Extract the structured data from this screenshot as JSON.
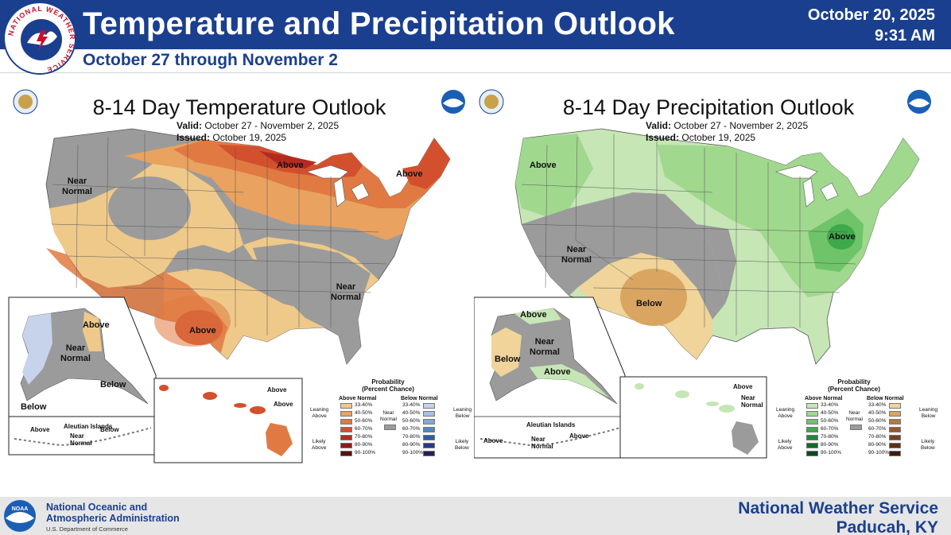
{
  "header": {
    "title": "Temperature and Precipitation Outlook",
    "date": "October 20, 2025",
    "time": "9:31 AM",
    "subtitle": "October 27 through November 2",
    "logo_ring_text": "NATIONAL WEATHER SERVICE",
    "colors": {
      "banner": "#1b3f8f"
    }
  },
  "temperature_map": {
    "title": "8-14 Day Temperature Outlook",
    "valid_label": "Valid:",
    "valid_value": "October 27 - November 2, 2025",
    "issued_label": "Issued:",
    "issued_value": "October 19, 2025",
    "regions": {
      "near_normal_west": "Near\nNormal",
      "above_north": "Above",
      "above_ne": "Above",
      "near_normal_east": "Near\nNormal",
      "above_tx": "Above",
      "ak_above": "Above",
      "ak_near_normal": "Near\nNormal",
      "ak_below_east": "Below",
      "ak_below_west": "Below",
      "aleutian_title": "Aleutian Islands",
      "aleutian_above": "Above",
      "aleutian_below": "Below",
      "aleutian_near": "Near\nNormal",
      "hi_above_1": "Above",
      "hi_above_2": "Above"
    },
    "legend": {
      "title": "Probability\n(Percent Chance)",
      "above_head": "Above Normal",
      "below_head": "Below Normal",
      "near_head": "Near\nNormal",
      "leaning_above": "Leaning\nAbove",
      "likely_above": "Likely\nAbove",
      "leaning_below": "Leaning\nBelow",
      "likely_below": "Likely\nBelow",
      "bins": [
        "33-40%",
        "40-50%",
        "50-60%",
        "60-70%",
        "70-80%",
        "80-90%",
        "90-100%"
      ],
      "above_colors": [
        "#efc98a",
        "#e9a25f",
        "#e07a42",
        "#d3502f",
        "#b52a1f",
        "#8e1a14",
        "#5e0f0b"
      ],
      "below_colors": [
        "#c6d3ea",
        "#a6c0e3",
        "#7fa9d8",
        "#4f89c4",
        "#2a5fa6",
        "#263a88",
        "#2a1a5e"
      ],
      "near_color": "#9b9b9b"
    }
  },
  "precipitation_map": {
    "title": "8-14 Day Precipitation Outlook",
    "valid_label": "Valid:",
    "valid_value": "October 27 - November 2, 2025",
    "issued_label": "Issued:",
    "issued_value": "October 19, 2025",
    "regions": {
      "above_nw": "Above",
      "near_normal_west": "Near\nNormal",
      "below_sw": "Below",
      "above_east": "Above",
      "ak_above_north": "Above",
      "ak_near_normal": "Near\nNormal",
      "ak_below": "Below",
      "ak_above_south": "Above",
      "aleutian_title": "Aleutian Islands",
      "aleutian_above_left": "Above",
      "aleutian_near": "Near\nNormal",
      "aleutian_above_right": "Above",
      "hi_above": "Above",
      "hi_near_normal": "Near\nNormal"
    },
    "legend": {
      "title": "Probability\n(Percent Chance)",
      "above_head": "Above Normal",
      "below_head": "Below Normal",
      "near_head": "Near\nNormal",
      "leaning_above": "Leaning\nAbove",
      "likely_above": "Likely\nAbove",
      "leaning_below": "Leaning\nBelow",
      "likely_below": "Likely\nBelow",
      "bins": [
        "33-40%",
        "40-50%",
        "50-60%",
        "60-70%",
        "70-80%",
        "80-90%",
        "90-100%"
      ],
      "above_colors": [
        "#c6e6b5",
        "#a0d88e",
        "#6fc46a",
        "#3ea94b",
        "#1e8a37",
        "#116b2a",
        "#0b4a1f"
      ],
      "below_colors": [
        "#f0d49a",
        "#d9a560",
        "#b8773b",
        "#97582c",
        "#7a4022",
        "#5e2e17",
        "#3f1d0e"
      ],
      "near_color": "#9b9b9b"
    }
  },
  "footer": {
    "noaa_line1": "National Oceanic and",
    "noaa_line2": "Atmospheric Administration",
    "noaa_dept": "U.S. Department of Commerce",
    "office_line1": "National Weather Service",
    "office_line2": "Paducah, KY",
    "noaa_logo_text": "NOAA"
  }
}
